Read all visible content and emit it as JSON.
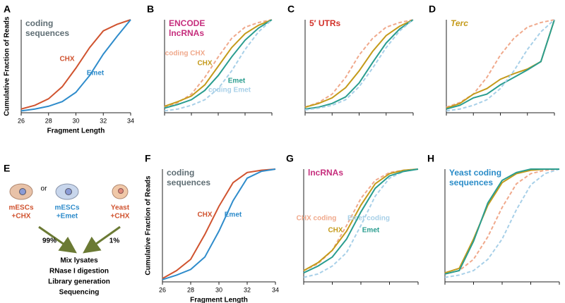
{
  "chart_data": [
    {
      "type": "line",
      "label": "A",
      "title": "coding sequences",
      "title_color": "#5f6e74",
      "x": [
        26,
        27,
        28,
        29,
        30,
        31,
        32,
        33,
        34
      ],
      "xlim": [
        26,
        34
      ],
      "ylim": [
        0,
        1
      ],
      "xticks": [
        26,
        28,
        30,
        32,
        34
      ],
      "xlabel": "Fragment Length",
      "ylabel": "Cumulative Fraction of Reads",
      "series": [
        {
          "name": "CHX",
          "color": "#d0532f",
          "dash": false,
          "values": [
            0.04,
            0.08,
            0.15,
            0.28,
            0.48,
            0.7,
            0.88,
            0.95,
            1.0
          ]
        },
        {
          "name": "Emet",
          "color": "#2f8ccb",
          "dash": false,
          "values": [
            0.02,
            0.04,
            0.07,
            0.12,
            0.22,
            0.4,
            0.63,
            0.82,
            1.0
          ]
        }
      ]
    },
    {
      "type": "line",
      "label": "B",
      "title": "ENCODE lncRNAs",
      "title_color": "#c62e7d",
      "x": [
        26,
        27,
        28,
        29,
        30,
        31,
        32,
        33,
        34
      ],
      "xlim": [
        26,
        34
      ],
      "ylim": [
        0,
        1
      ],
      "series": [
        {
          "name": "coding CHX",
          "color": "#f0a98c",
          "dash": true,
          "values": [
            0.06,
            0.11,
            0.2,
            0.38,
            0.6,
            0.8,
            0.92,
            0.97,
            1.0
          ]
        },
        {
          "name": "CHX",
          "color": "#c49a1a",
          "dash": false,
          "values": [
            0.07,
            0.12,
            0.18,
            0.3,
            0.5,
            0.7,
            0.85,
            0.94,
            1.0
          ]
        },
        {
          "name": "Emet",
          "color": "#2a9d8f",
          "dash": false,
          "values": [
            0.05,
            0.09,
            0.14,
            0.24,
            0.4,
            0.6,
            0.78,
            0.91,
            1.0
          ]
        },
        {
          "name": "coding Emet",
          "color": "#a8d0e8",
          "dash": true,
          "values": [
            0.02,
            0.04,
            0.08,
            0.14,
            0.26,
            0.45,
            0.68,
            0.87,
            1.0
          ]
        }
      ]
    },
    {
      "type": "line",
      "label": "C",
      "title": "5′ UTRs",
      "title_color": "#d2312a",
      "x": [
        26,
        27,
        28,
        29,
        30,
        31,
        32,
        33,
        34
      ],
      "xlim": [
        26,
        34
      ],
      "ylim": [
        0,
        1
      ],
      "series": [
        {
          "color": "#f0a98c",
          "dash": true,
          "values": [
            0.06,
            0.11,
            0.2,
            0.38,
            0.62,
            0.8,
            0.92,
            0.97,
            1.0
          ]
        },
        {
          "color": "#c49a1a",
          "dash": false,
          "values": [
            0.06,
            0.1,
            0.16,
            0.27,
            0.45,
            0.66,
            0.83,
            0.93,
            1.0
          ]
        },
        {
          "color": "#2a9d8f",
          "dash": false,
          "values": [
            0.04,
            0.06,
            0.1,
            0.17,
            0.32,
            0.54,
            0.75,
            0.9,
            1.0
          ]
        },
        {
          "color": "#a8d0e8",
          "dash": true,
          "values": [
            0.03,
            0.05,
            0.08,
            0.14,
            0.28,
            0.48,
            0.7,
            0.88,
            1.0
          ]
        }
      ]
    },
    {
      "type": "line",
      "label": "D",
      "title": "Terc",
      "title_color": "#c49a1a",
      "title_italic": true,
      "x": [
        26,
        27,
        28,
        29,
        30,
        31,
        32,
        33,
        34
      ],
      "xlim": [
        26,
        34
      ],
      "ylim": [
        0,
        1
      ],
      "series": [
        {
          "color": "#f0a98c",
          "dash": true,
          "values": [
            0.06,
            0.11,
            0.2,
            0.38,
            0.62,
            0.8,
            0.92,
            0.97,
            1.0
          ]
        },
        {
          "color": "#c49a1a",
          "dash": false,
          "values": [
            0.05,
            0.1,
            0.2,
            0.26,
            0.36,
            0.42,
            0.47,
            0.55,
            1.0
          ]
        },
        {
          "color": "#2a9d8f",
          "dash": false,
          "values": [
            0.04,
            0.08,
            0.16,
            0.2,
            0.3,
            0.38,
            0.46,
            0.55,
            1.0
          ]
        },
        {
          "color": "#a8d0e8",
          "dash": true,
          "values": [
            0.02,
            0.04,
            0.08,
            0.14,
            0.26,
            0.45,
            0.68,
            0.87,
            1.0
          ]
        }
      ]
    },
    {
      "type": "line",
      "label": "F",
      "title": "coding sequences",
      "title_color": "#5f6e74",
      "x": [
        26,
        27,
        28,
        29,
        30,
        31,
        32,
        33,
        34
      ],
      "xlim": [
        26,
        34
      ],
      "ylim": [
        0,
        1
      ],
      "xticks": [
        26,
        28,
        30,
        32,
        34
      ],
      "xlabel": "Fragment Length",
      "ylabel": "Cumulative Fraction of Reads",
      "series": [
        {
          "name": "CHX",
          "color": "#d0532f",
          "dash": false,
          "values": [
            0.03,
            0.1,
            0.2,
            0.42,
            0.67,
            0.88,
            0.97,
            0.99,
            1.0
          ]
        },
        {
          "name": "Emet",
          "color": "#2f8ccb",
          "dash": false,
          "values": [
            0.02,
            0.06,
            0.11,
            0.22,
            0.45,
            0.72,
            0.92,
            0.98,
            1.0
          ]
        }
      ]
    },
    {
      "type": "line",
      "label": "G",
      "title": "lncRNAs",
      "title_color": "#c62e7d",
      "x": [
        26,
        27,
        28,
        29,
        30,
        31,
        32,
        33,
        34
      ],
      "xlim": [
        26,
        34
      ],
      "ylim": [
        0,
        1
      ],
      "series": [
        {
          "name": "CHX coding",
          "color": "#f0a98c",
          "dash": true,
          "values": [
            0.1,
            0.16,
            0.28,
            0.5,
            0.74,
            0.9,
            0.97,
            0.99,
            1.0
          ]
        },
        {
          "name": "CHX",
          "color": "#c49a1a",
          "dash": false,
          "values": [
            0.1,
            0.17,
            0.28,
            0.45,
            0.68,
            0.87,
            0.96,
            0.99,
            1.0
          ]
        },
        {
          "name": "Emet coding",
          "color": "#a8d0e8",
          "dash": true,
          "values": [
            0.04,
            0.07,
            0.14,
            0.26,
            0.5,
            0.76,
            0.92,
            0.98,
            1.0
          ]
        },
        {
          "name": "Emet",
          "color": "#2a9d8f",
          "dash": false,
          "values": [
            0.08,
            0.14,
            0.22,
            0.38,
            0.62,
            0.83,
            0.94,
            0.98,
            1.0
          ]
        }
      ]
    },
    {
      "type": "line",
      "label": "H",
      "title": "Yeast coding sequences",
      "title_color": "#2a8cc8",
      "x": [
        26,
        27,
        28,
        29,
        30,
        31,
        32,
        33,
        34
      ],
      "xlim": [
        26,
        34
      ],
      "ylim": [
        0,
        1
      ],
      "series": [
        {
          "color": "#f0a98c",
          "dash": true,
          "values": [
            0.07,
            0.1,
            0.2,
            0.4,
            0.66,
            0.87,
            0.96,
            0.99,
            1.0
          ]
        },
        {
          "color": "#a8d0e8",
          "dash": true,
          "values": [
            0.04,
            0.06,
            0.1,
            0.2,
            0.38,
            0.64,
            0.86,
            0.96,
            1.0
          ]
        },
        {
          "color": "#c49a1a",
          "dash": false,
          "values": [
            0.08,
            0.12,
            0.38,
            0.68,
            0.88,
            0.96,
            0.99,
            1.0,
            1.0
          ]
        },
        {
          "color": "#2a9d8f",
          "dash": false,
          "values": [
            0.07,
            0.1,
            0.36,
            0.7,
            0.9,
            0.97,
            1.0,
            1.0,
            1.0
          ]
        }
      ]
    }
  ],
  "diagram": {
    "label": "E",
    "or": "or",
    "samples": [
      {
        "lines": [
          "mESCs",
          "+CHX"
        ],
        "color": "#d0532f"
      },
      {
        "lines": [
          "mESCs",
          "+Emet"
        ],
        "color": "#2f8ccb"
      },
      {
        "lines": [
          "Yeast",
          "+CHX"
        ],
        "color": "#d0532f"
      }
    ],
    "fractions": [
      "99%",
      "1%"
    ],
    "steps": [
      "Mix lysates",
      "RNase I digestion",
      "Library generation",
      "Sequencing"
    ]
  }
}
